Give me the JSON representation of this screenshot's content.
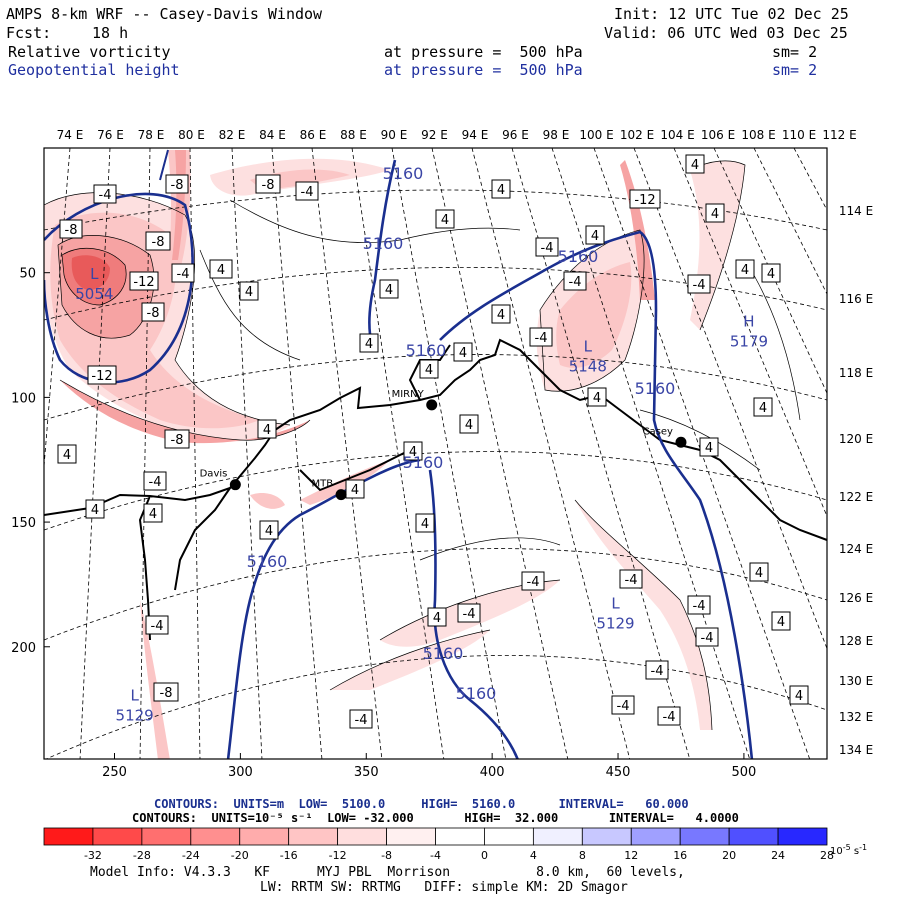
{
  "header": {
    "title": "AMPS 8-km WRF -- Casey-Davis Window",
    "fcst_label": "Fcst:",
    "fcst_value": "18 h",
    "init": "Init: 12 UTC Tue 02 Dec 25",
    "valid": "Valid: 06 UTC Wed 03 Dec 25",
    "field1_name": "Relative vorticity",
    "field1_level": "at pressure =  500 hPa",
    "field1_sm": "sm= 2",
    "field2_name": "Geopotential height",
    "field2_level": "at pressure =  500 hPa",
    "field2_sm": "sm= 2"
  },
  "chart_data": {
    "type": "heatmap",
    "title": "AMPS 8-km WRF -- Casey-Davis Window",
    "top_longitudes": [
      "74 E",
      "76 E",
      "78 E",
      "80 E",
      "82 E",
      "84 E",
      "86 E",
      "88 E",
      "90 E",
      "92 E",
      "94 E",
      "96 E",
      "98 E",
      "100 E",
      "102 E",
      "104 E",
      "106 E",
      "108 E",
      "110 E",
      "112 E"
    ],
    "right_longitudes": [
      "114 E",
      "116 E",
      "118 E",
      "120 E",
      "122 E",
      "124 E",
      "126 E",
      "128 E",
      "130 E",
      "132 E",
      "134 E"
    ],
    "x_ticks": [
      "250",
      "300",
      "350",
      "400",
      "450",
      "500"
    ],
    "y_ticks": [
      "50",
      "100",
      "150",
      "200"
    ],
    "xlim": [
      222,
      533
    ],
    "ylim": [
      0,
      245
    ],
    "height_contours_m": {
      "units": "m",
      "low": 5100.0,
      "high": 5160.0,
      "interval": 60.0
    },
    "vorticity_contours": {
      "units": "10^-5 s^-1",
      "low": -32.0,
      "high": 32.0,
      "interval": 4.0
    },
    "height_labels": [
      "5160",
      "5160",
      "5160",
      "5160",
      "5160",
      "5160",
      "5160",
      "5160",
      "5160",
      "5160"
    ],
    "highs_lows": [
      {
        "type": "L",
        "value": "5054",
        "x": 242,
        "y": 55
      },
      {
        "type": "L",
        "value": "5148",
        "x": 438,
        "y": 84
      },
      {
        "type": "H",
        "value": "5179",
        "x": 502,
        "y": 74
      },
      {
        "type": "L",
        "value": "5129",
        "x": 449,
        "y": 187
      },
      {
        "type": "L",
        "value": "5129",
        "x": 258,
        "y": 224
      }
    ],
    "stations": [
      {
        "name": "MIRNY",
        "x": 376,
        "y": 103
      },
      {
        "name": "Casey",
        "x": 475,
        "y": 118
      },
      {
        "name": "Davis",
        "x": 298,
        "y": 135
      },
      {
        "name": "MTB",
        "x": 340,
        "y": 139
      }
    ],
    "colorbar": {
      "units": "10⁻⁵ s⁻¹",
      "units_label": "10",
      "units_exp": "-5",
      "units_s": "s",
      "units_sexp": "-1",
      "tick_labels": [
        "-32",
        "-28",
        "-24",
        "-20",
        "-16",
        "-12",
        "-8",
        "-4",
        "0",
        "4",
        "8",
        "12",
        "16",
        "20",
        "24",
        "28",
        "32"
      ],
      "colors": [
        "#ff1a1a",
        "#ff4a4a",
        "#ff6f6f",
        "#ff8f8f",
        "#ffacac",
        "#ffc5c5",
        "#ffdede",
        "#fff0f0",
        "#ffffff",
        "#ffffff",
        "#f0f0ff",
        "#c8c8ff",
        "#a0a0ff",
        "#7878ff",
        "#5050ff",
        "#2828ff"
      ]
    }
  },
  "footer": {
    "contour1": "CONTOURS:  UNITS=m  LOW=  5100.0     HIGH=  5160.0      INTERVAL=   60.000",
    "contour2": "CONTOURS:  UNITS=10⁻⁵ s⁻¹  LOW= -32.000       HIGH=  32.000       INTERVAL=   4.0000",
    "model1": "Model Info: V4.3.3   KF      MYJ PBL  Morrison           8.0 km,  60 levels,",
    "model2": "LW: RRTM SW: RRTMG   DIFF: simple KM: 2D Smagor"
  },
  "colors": {
    "height": "#1a2f8f",
    "shade_light": "#fde0e0",
    "shade_mid": "#f8b4b4",
    "shade_dark": "#ef7c7c",
    "coast": "#000000"
  }
}
